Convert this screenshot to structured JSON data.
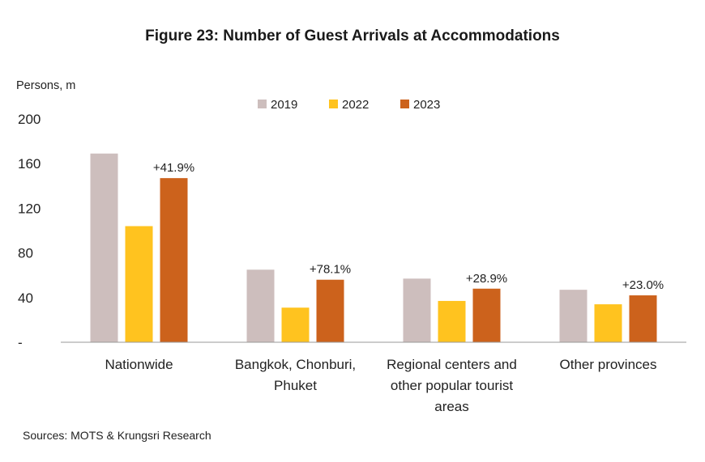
{
  "chart_data": {
    "type": "bar",
    "title": "Figure 23: Number of Guest Arrivals at Accommodations",
    "ylabel": "Persons, m",
    "ylim": [
      0,
      200
    ],
    "yticks": [
      {
        "value": 0,
        "label": "-"
      },
      {
        "value": 40,
        "label": "40"
      },
      {
        "value": 80,
        "label": "80"
      },
      {
        "value": 120,
        "label": "120"
      },
      {
        "value": 160,
        "label": "160"
      },
      {
        "value": 200,
        "label": "200"
      }
    ],
    "categories": [
      [
        "Nationwide"
      ],
      [
        "Bangkok, Chonburi,",
        "Phuket"
      ],
      [
        "Regional centers and",
        "other popular tourist",
        "areas"
      ],
      [
        "Other provinces"
      ]
    ],
    "series": [
      {
        "name": "2019",
        "color": "#CDBEBD",
        "values": [
          169,
          65,
          57,
          47
        ]
      },
      {
        "name": "2022",
        "color": "#FFC31F",
        "values": [
          104,
          31,
          37,
          34
        ]
      },
      {
        "name": "2023",
        "color": "#CC621C",
        "values": [
          147,
          56,
          48,
          42
        ]
      }
    ],
    "annotations": [
      "+41.9%",
      "+78.1%",
      "+28.9%",
      "+23.0%"
    ],
    "legend_position": "top",
    "grid": false
  },
  "source_text": "Sources: MOTS &  Krungsri Research"
}
